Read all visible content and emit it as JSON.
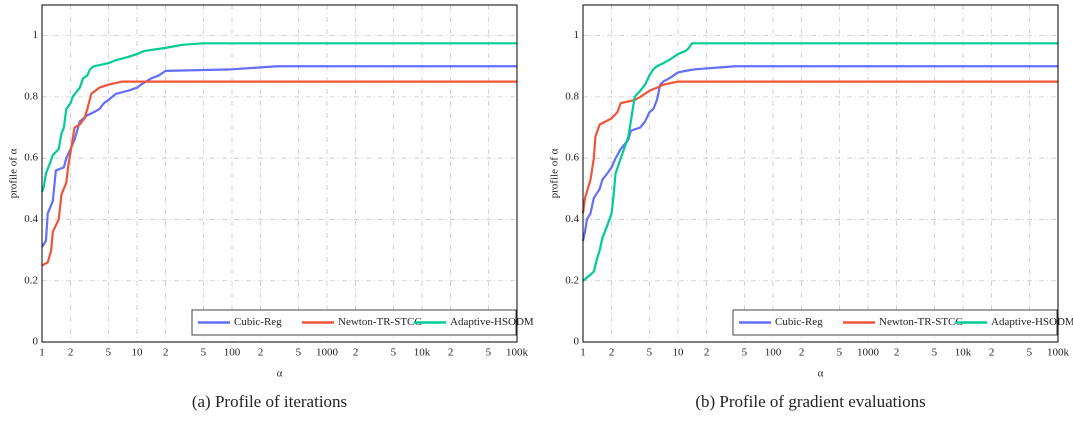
{
  "chart_data": [
    {
      "type": "line",
      "caption": "(a) Profile of iterations",
      "xlabel": "α",
      "ylabel": "profile of α",
      "xscale": "log",
      "grid": true,
      "legend": "lower right",
      "xlim": [
        1,
        100000
      ],
      "ylim": [
        0,
        1.1
      ],
      "xticks": [
        1,
        2,
        5,
        10,
        {
          "value": 20,
          "label": "2"
        },
        {
          "value": 50,
          "label": "5"
        },
        100,
        {
          "value": 200,
          "label": "2"
        },
        {
          "value": 500,
          "label": "5"
        },
        1000,
        {
          "value": 2000,
          "label": "2"
        },
        {
          "value": 5000,
          "label": "5"
        },
        {
          "value": 10000,
          "label": "10k"
        },
        {
          "value": 20000,
          "label": "2"
        },
        {
          "value": 50000,
          "label": "5"
        },
        {
          "value": 100000,
          "label": "100k"
        }
      ],
      "yticks": [
        0,
        0.2,
        0.4,
        0.6,
        0.8,
        1
      ],
      "series": [
        {
          "name": "Cubic-Reg",
          "color": "#636efa",
          "x": [
            1,
            1.1,
            1.15,
            1.3,
            1.4,
            1.7,
            1.8,
            2,
            2.2,
            2.5,
            3,
            3.5,
            4,
            4.5,
            5,
            6,
            8,
            10,
            11,
            14,
            17,
            20,
            100,
            300,
            100000
          ],
          "values": [
            0.31,
            0.33,
            0.42,
            0.46,
            0.56,
            0.57,
            0.6,
            0.63,
            0.66,
            0.72,
            0.74,
            0.75,
            0.76,
            0.78,
            0.79,
            0.81,
            0.82,
            0.83,
            0.84,
            0.86,
            0.87,
            0.885,
            0.89,
            0.9,
            0.9
          ]
        },
        {
          "name": "Newton-TR-STCG",
          "color": "#ef553b",
          "x": [
            1,
            1.15,
            1.25,
            1.3,
            1.5,
            1.6,
            1.8,
            1.9,
            2,
            2.2,
            2.5,
            2.8,
            3,
            3.3,
            4,
            5,
            7,
            100000
          ],
          "values": [
            0.25,
            0.26,
            0.3,
            0.36,
            0.4,
            0.48,
            0.52,
            0.58,
            0.62,
            0.7,
            0.71,
            0.73,
            0.76,
            0.81,
            0.83,
            0.84,
            0.85,
            0.85
          ]
        },
        {
          "name": "Adaptive-HSODM",
          "color": "#00cc96",
          "x": [
            1,
            1.05,
            1.1,
            1.2,
            1.3,
            1.5,
            1.6,
            1.7,
            1.8,
            2,
            2.1,
            2.5,
            2.7,
            3,
            3.2,
            3.5,
            5,
            6,
            8,
            10,
            12,
            20,
            30,
            50,
            100000
          ],
          "values": [
            0.49,
            0.51,
            0.55,
            0.58,
            0.61,
            0.63,
            0.68,
            0.7,
            0.76,
            0.78,
            0.8,
            0.83,
            0.86,
            0.87,
            0.89,
            0.9,
            0.91,
            0.92,
            0.93,
            0.94,
            0.95,
            0.96,
            0.97,
            0.975,
            0.975
          ]
        }
      ]
    },
    {
      "type": "line",
      "caption": "(b) Profile of gradient evaluations",
      "xlabel": "α",
      "ylabel": "profile of α",
      "xscale": "log",
      "grid": true,
      "legend": "lower right",
      "xlim": [
        1,
        100000
      ],
      "ylim": [
        0,
        1.1
      ],
      "xticks": [
        1,
        2,
        5,
        10,
        {
          "value": 20,
          "label": "2"
        },
        {
          "value": 50,
          "label": "5"
        },
        100,
        {
          "value": 200,
          "label": "2"
        },
        {
          "value": 500,
          "label": "5"
        },
        1000,
        {
          "value": 2000,
          "label": "2"
        },
        {
          "value": 5000,
          "label": "5"
        },
        {
          "value": 10000,
          "label": "10k"
        },
        {
          "value": 20000,
          "label": "2"
        },
        {
          "value": 50000,
          "label": "5"
        },
        {
          "value": 100000,
          "label": "100k"
        }
      ],
      "yticks": [
        0,
        0.2,
        0.4,
        0.6,
        0.8,
        1
      ],
      "series": [
        {
          "name": "Cubic-Reg",
          "color": "#636efa",
          "x": [
            1,
            1.05,
            1.1,
            1.2,
            1.3,
            1.5,
            1.6,
            1.8,
            2,
            2.2,
            2.5,
            3,
            3.2,
            4,
            4.5,
            5,
            5.5,
            6,
            6.5,
            7,
            8,
            9,
            10,
            12,
            15,
            40,
            100000
          ],
          "values": [
            0.33,
            0.36,
            0.4,
            0.42,
            0.47,
            0.5,
            0.53,
            0.55,
            0.57,
            0.6,
            0.63,
            0.66,
            0.69,
            0.7,
            0.72,
            0.75,
            0.76,
            0.79,
            0.84,
            0.85,
            0.86,
            0.87,
            0.88,
            0.885,
            0.89,
            0.9,
            0.9
          ]
        },
        {
          "name": "Newton-TR-STCG",
          "color": "#ef553b",
          "x": [
            1,
            1.05,
            1.2,
            1.3,
            1.35,
            1.5,
            2,
            2.3,
            2.5,
            3,
            3.5,
            4,
            5,
            6,
            7,
            10,
            100000
          ],
          "values": [
            0.42,
            0.47,
            0.53,
            0.6,
            0.67,
            0.71,
            0.73,
            0.75,
            0.78,
            0.785,
            0.79,
            0.8,
            0.82,
            0.83,
            0.84,
            0.85,
            0.85
          ]
        },
        {
          "name": "Adaptive-HSODM",
          "color": "#00cc96",
          "x": [
            1,
            1.2,
            1.3,
            1.4,
            1.5,
            1.6,
            1.8,
            2,
            2.1,
            2.2,
            2.5,
            3,
            3.3,
            3.5,
            4,
            4.5,
            5,
            5.5,
            6,
            7,
            8,
            9,
            10,
            12,
            13,
            14,
            100000
          ],
          "values": [
            0.2,
            0.22,
            0.23,
            0.27,
            0.3,
            0.34,
            0.38,
            0.42,
            0.48,
            0.55,
            0.6,
            0.67,
            0.75,
            0.8,
            0.82,
            0.84,
            0.87,
            0.89,
            0.9,
            0.91,
            0.92,
            0.93,
            0.94,
            0.95,
            0.96,
            0.975,
            0.975
          ]
        }
      ]
    }
  ]
}
